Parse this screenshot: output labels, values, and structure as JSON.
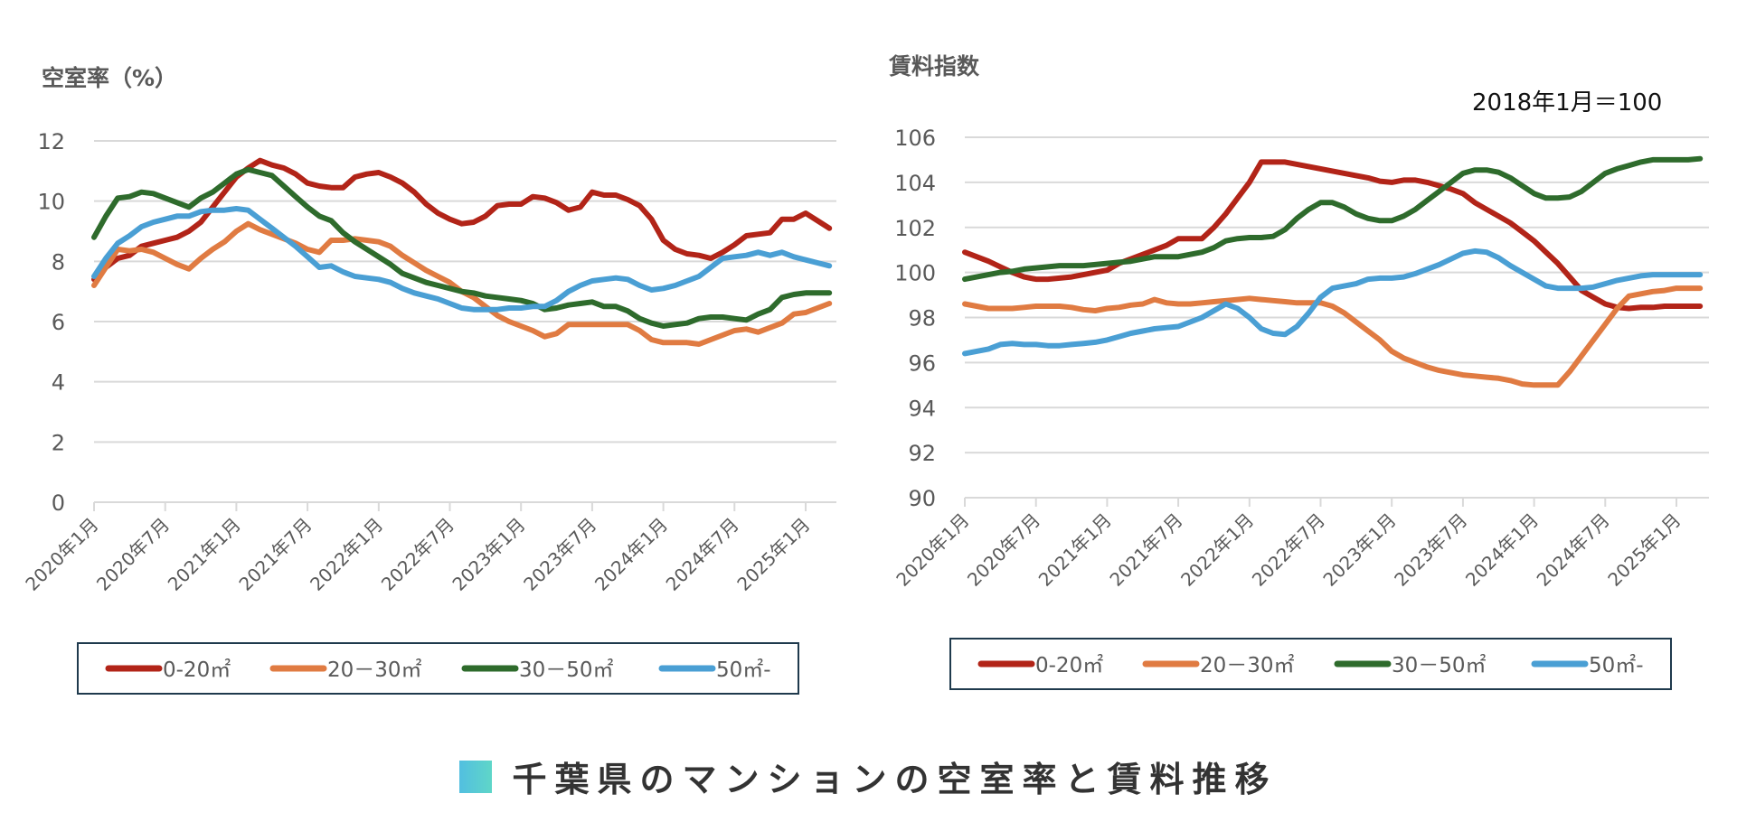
{
  "title": "千葉県のマンションの空室率と賃料推移",
  "chart_data": [
    {
      "type": "line",
      "title": "",
      "ylabel": "空室率（%）",
      "xlabel": "",
      "ylim": [
        0,
        12
      ],
      "yticks": [
        0,
        2,
        4,
        6,
        8,
        10,
        12
      ],
      "grid": true,
      "legend_position": "bottom",
      "x_start": "2020年1月",
      "x_end": "2025年3月",
      "x_tick_labels": [
        "2020年1月",
        "2020年7月",
        "2021年1月",
        "2021年7月",
        "2022年1月",
        "2022年7月",
        "2023年1月",
        "2023年7月",
        "2024年1月",
        "2024年7月",
        "2025年1月"
      ],
      "series": [
        {
          "name": "0-20㎡",
          "color": "#b22418",
          "values": [
            7.4,
            7.8,
            8.1,
            8.2,
            8.5,
            8.6,
            8.7,
            8.8,
            9.0,
            9.3,
            9.8,
            10.3,
            10.8,
            11.1,
            11.35,
            11.2,
            11.1,
            10.9,
            10.6,
            10.5,
            10.45,
            10.45,
            10.8,
            10.9,
            10.95,
            10.8,
            10.6,
            10.3,
            9.9,
            9.6,
            9.4,
            9.25,
            9.3,
            9.5,
            9.85,
            9.9,
            9.9,
            10.15,
            10.1,
            9.95,
            9.7,
            9.8,
            10.3,
            10.2,
            10.2,
            10.05,
            9.85,
            9.4,
            8.7,
            8.4,
            8.25,
            8.2,
            8.1,
            8.3,
            8.55,
            8.85,
            8.9,
            8.95,
            9.4,
            9.4,
            9.6,
            9.35,
            9.1
          ]
        },
        {
          "name": "20－30㎡",
          "color": "#e07b42",
          "values": [
            7.2,
            7.8,
            8.4,
            8.35,
            8.4,
            8.3,
            8.1,
            7.9,
            7.75,
            8.1,
            8.4,
            8.65,
            9.0,
            9.25,
            9.05,
            8.9,
            8.75,
            8.6,
            8.4,
            8.3,
            8.7,
            8.7,
            8.75,
            8.7,
            8.65,
            8.5,
            8.2,
            7.95,
            7.7,
            7.5,
            7.3,
            7.0,
            6.8,
            6.5,
            6.2,
            6.0,
            5.85,
            5.7,
            5.5,
            5.6,
            5.9,
            5.9,
            5.9,
            5.9,
            5.9,
            5.9,
            5.7,
            5.4,
            5.3,
            5.3,
            5.3,
            5.25,
            5.4,
            5.55,
            5.7,
            5.75,
            5.65,
            5.8,
            5.95,
            6.25,
            6.3,
            6.45,
            6.6
          ]
        },
        {
          "name": "30－50㎡",
          "color": "#2e6b2c",
          "values": [
            8.8,
            9.5,
            10.1,
            10.15,
            10.3,
            10.25,
            10.1,
            9.95,
            9.8,
            10.1,
            10.3,
            10.6,
            10.9,
            11.05,
            10.95,
            10.85,
            10.5,
            10.15,
            9.8,
            9.5,
            9.35,
            8.95,
            8.65,
            8.4,
            8.15,
            7.9,
            7.6,
            7.45,
            7.3,
            7.2,
            7.1,
            7.0,
            6.95,
            6.85,
            6.8,
            6.75,
            6.7,
            6.6,
            6.4,
            6.45,
            6.55,
            6.6,
            6.65,
            6.5,
            6.5,
            6.35,
            6.1,
            5.95,
            5.85,
            5.9,
            5.95,
            6.1,
            6.15,
            6.15,
            6.1,
            6.05,
            6.25,
            6.4,
            6.8,
            6.9,
            6.95,
            6.95,
            6.95
          ]
        },
        {
          "name": "50㎡-",
          "color": "#4a9fd4",
          "values": [
            7.5,
            8.1,
            8.6,
            8.85,
            9.15,
            9.3,
            9.4,
            9.5,
            9.5,
            9.65,
            9.7,
            9.7,
            9.75,
            9.7,
            9.4,
            9.1,
            8.8,
            8.5,
            8.15,
            7.8,
            7.85,
            7.65,
            7.5,
            7.45,
            7.4,
            7.3,
            7.1,
            6.95,
            6.85,
            6.75,
            6.6,
            6.45,
            6.4,
            6.4,
            6.4,
            6.45,
            6.45,
            6.5,
            6.5,
            6.7,
            7.0,
            7.2,
            7.35,
            7.4,
            7.45,
            7.4,
            7.2,
            7.05,
            7.1,
            7.2,
            7.35,
            7.5,
            7.8,
            8.1,
            8.15,
            8.2,
            8.3,
            8.2,
            8.3,
            8.15,
            8.05,
            7.95,
            7.85
          ]
        }
      ],
      "legend": [
        "0-20㎡",
        "20－30㎡",
        "30－50㎡",
        "50㎡-"
      ]
    },
    {
      "type": "line",
      "title": "",
      "ylabel": "賃料指数",
      "annotation": "2018年1月＝100",
      "xlabel": "",
      "ylim": [
        90,
        106
      ],
      "yticks": [
        90,
        92,
        94,
        96,
        98,
        100,
        102,
        104,
        106
      ],
      "grid": true,
      "legend_position": "bottom",
      "x_start": "2020年1月",
      "x_end": "2025年3月",
      "x_tick_labels": [
        "2020年1月",
        "2020年7月",
        "2021年1月",
        "2021年7月",
        "2022年1月",
        "2022年7月",
        "2023年1月",
        "2023年7月",
        "2024年1月",
        "2024年7月",
        "2025年1月"
      ],
      "series": [
        {
          "name": "0-20㎡",
          "color": "#b22418",
          "values": [
            100.9,
            100.7,
            100.5,
            100.25,
            100.0,
            99.8,
            99.7,
            99.7,
            99.75,
            99.8,
            99.9,
            100.0,
            100.1,
            100.4,
            100.6,
            100.8,
            101.0,
            101.2,
            101.5,
            101.5,
            101.5,
            102.0,
            102.6,
            103.3,
            104.0,
            104.9,
            104.9,
            104.9,
            104.8,
            104.7,
            104.6,
            104.5,
            104.4,
            104.3,
            104.2,
            104.05,
            104.0,
            104.1,
            104.1,
            104.0,
            103.85,
            103.7,
            103.5,
            103.1,
            102.8,
            102.5,
            102.2,
            101.8,
            101.4,
            100.9,
            100.4,
            99.8,
            99.2,
            98.9,
            98.6,
            98.45,
            98.4,
            98.45,
            98.45,
            98.5,
            98.5,
            98.5,
            98.5
          ]
        },
        {
          "name": "20－30㎡",
          "color": "#e07b42",
          "values": [
            98.6,
            98.5,
            98.4,
            98.4,
            98.4,
            98.45,
            98.5,
            98.5,
            98.5,
            98.45,
            98.35,
            98.3,
            98.4,
            98.45,
            98.55,
            98.6,
            98.8,
            98.65,
            98.6,
            98.6,
            98.65,
            98.7,
            98.75,
            98.8,
            98.85,
            98.8,
            98.75,
            98.7,
            98.65,
            98.65,
            98.65,
            98.5,
            98.2,
            97.8,
            97.4,
            97.0,
            96.5,
            96.2,
            96.0,
            95.8,
            95.65,
            95.55,
            95.45,
            95.4,
            95.35,
            95.3,
            95.2,
            95.05,
            95.0,
            95.0,
            95.0,
            95.6,
            96.3,
            97.0,
            97.7,
            98.4,
            98.95,
            99.05,
            99.15,
            99.2,
            99.3,
            99.3,
            99.3
          ]
        },
        {
          "name": "30－50㎡",
          "color": "#2e6b2c",
          "values": [
            99.7,
            99.8,
            99.9,
            100.0,
            100.05,
            100.15,
            100.2,
            100.25,
            100.3,
            100.3,
            100.3,
            100.35,
            100.4,
            100.45,
            100.5,
            100.6,
            100.7,
            100.7,
            100.7,
            100.8,
            100.9,
            101.1,
            101.4,
            101.5,
            101.55,
            101.55,
            101.6,
            101.9,
            102.4,
            102.8,
            103.1,
            103.1,
            102.9,
            102.6,
            102.4,
            102.3,
            102.3,
            102.5,
            102.8,
            103.2,
            103.6,
            104.0,
            104.4,
            104.55,
            104.55,
            104.45,
            104.2,
            103.85,
            103.5,
            103.3,
            103.3,
            103.35,
            103.6,
            104.0,
            104.4,
            104.6,
            104.75,
            104.9,
            105.0,
            105.0,
            105.0,
            105.0,
            105.05
          ]
        },
        {
          "name": "50㎡-",
          "color": "#4a9fd4",
          "values": [
            96.4,
            96.5,
            96.6,
            96.8,
            96.85,
            96.8,
            96.8,
            96.75,
            96.75,
            96.8,
            96.85,
            96.9,
            97.0,
            97.15,
            97.3,
            97.4,
            97.5,
            97.55,
            97.6,
            97.8,
            98.0,
            98.3,
            98.6,
            98.4,
            98.0,
            97.5,
            97.3,
            97.25,
            97.6,
            98.2,
            98.9,
            99.3,
            99.4,
            99.5,
            99.7,
            99.75,
            99.75,
            99.8,
            99.95,
            100.15,
            100.35,
            100.6,
            100.85,
            100.95,
            100.9,
            100.65,
            100.3,
            100.0,
            99.7,
            99.4,
            99.3,
            99.3,
            99.3,
            99.35,
            99.5,
            99.65,
            99.75,
            99.85,
            99.9,
            99.9,
            99.9,
            99.9,
            99.9
          ]
        }
      ],
      "legend": [
        "0-20㎡",
        "20－30㎡",
        "30－50㎡",
        "50㎡-"
      ]
    }
  ]
}
